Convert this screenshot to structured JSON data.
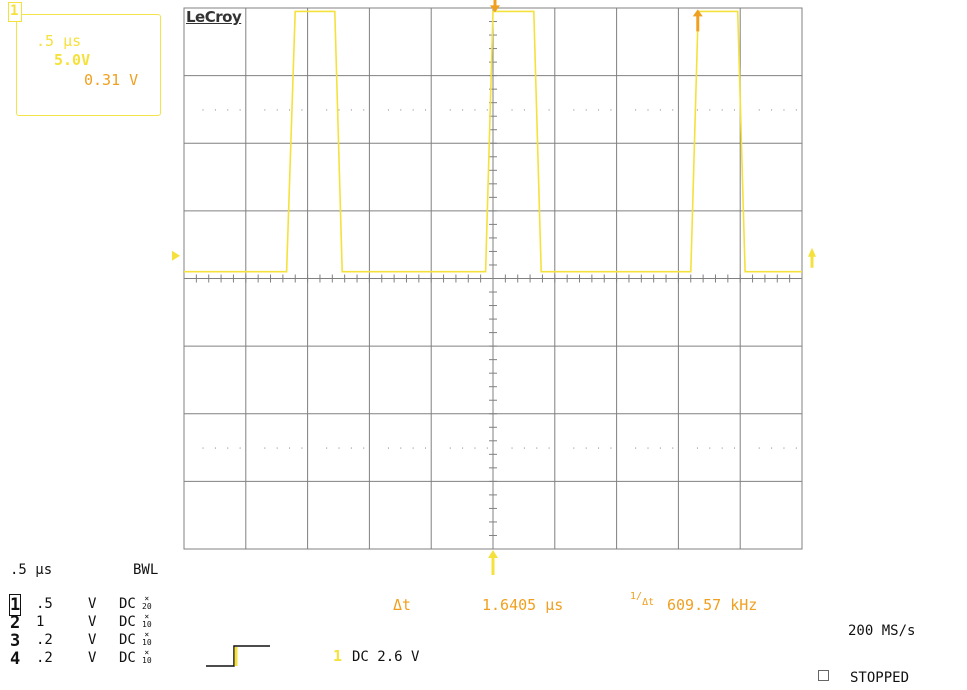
{
  "brand": "LeCroy",
  "timebase_box": {
    "channel": "1",
    "time_div": ".5 µs",
    "volt_div": "5.0V",
    "offset": "0.31 V"
  },
  "panel": {
    "time_div": ".5 µs",
    "bwl": "BWL",
    "channels": [
      {
        "num": "1",
        "scale": ".5",
        "unit": "V",
        "coupling": "DC",
        "probe": "20"
      },
      {
        "num": "2",
        "scale": "1",
        "unit": "V",
        "coupling": "DC",
        "probe": "10"
      },
      {
        "num": "3",
        "scale": ".2",
        "unit": "V",
        "coupling": "DC",
        "probe": "10"
      },
      {
        "num": "4",
        "scale": ".2",
        "unit": "V",
        "coupling": "DC",
        "probe": "10"
      }
    ]
  },
  "measurement": {
    "delta_t_label": "Δt",
    "delta_t_value": "1.6405 µs",
    "freq_label_num": "1",
    "freq_label_den": "Δt",
    "freq_value": "609.57 kHz"
  },
  "trigger": {
    "channel": "1",
    "setting": "DC 2.6 V"
  },
  "sample_rate": "200 MS/s",
  "status": "STOPPED",
  "colors": {
    "trace": "#f5e13c",
    "cursor": "#f0a020",
    "grid": "#808080",
    "background": "#ffffff"
  },
  "chart_data": {
    "type": "line",
    "x_divisions": 10,
    "y_divisions": 8,
    "x_range_us": [
      -2.5,
      2.5
    ],
    "waveform_us": [
      [
        -2.5,
        0.1
      ],
      [
        -1.67,
        0.1
      ],
      [
        -1.6,
        3.95
      ],
      [
        -1.28,
        3.95
      ],
      [
        -1.22,
        0.1
      ],
      [
        -0.06,
        0.1
      ],
      [
        0.0,
        3.95
      ],
      [
        0.33,
        3.95
      ],
      [
        0.39,
        0.1
      ],
      [
        1.6,
        0.1
      ],
      [
        1.66,
        3.95
      ],
      [
        1.98,
        3.95
      ],
      [
        2.04,
        0.1
      ],
      [
        2.5,
        0.1
      ]
    ],
    "cursors_us": [
      0.0,
      1.6405
    ]
  }
}
